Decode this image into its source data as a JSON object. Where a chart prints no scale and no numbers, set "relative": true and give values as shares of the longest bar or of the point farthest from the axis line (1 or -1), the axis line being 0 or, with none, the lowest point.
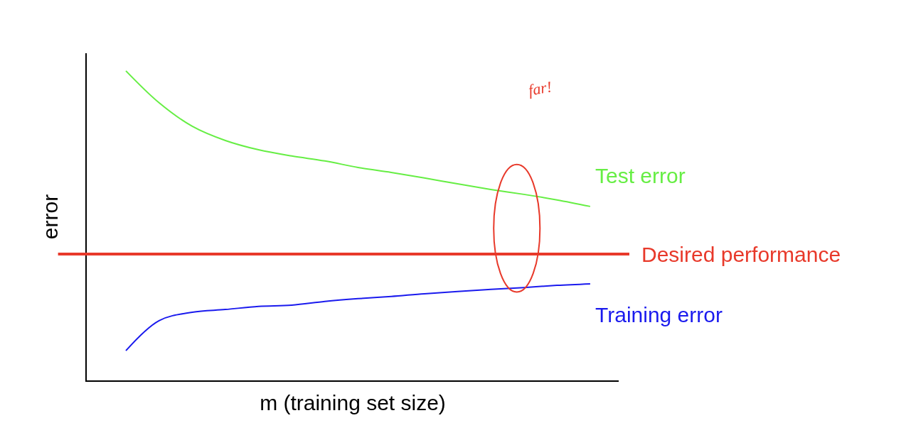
{
  "chart_data": {
    "type": "line",
    "relative": true,
    "xlabel": "m (training set size)",
    "ylabel": "error",
    "legend": false,
    "marker": "none",
    "line_style": "solid",
    "categories": [
      null,
      null,
      null,
      null,
      null,
      null,
      null,
      null,
      null,
      null,
      null,
      null,
      null,
      null,
      null
    ],
    "series": [
      {
        "name": "Test error",
        "color": "#66ee44",
        "values": [
          1,
          0.897,
          0.821,
          0.775,
          0.745,
          0.725,
          0.709,
          0.688,
          0.672,
          0.654,
          0.635,
          0.617,
          0.601,
          0.583,
          0.562
        ]
      },
      {
        "name": "Training error",
        "color": "#1a1aee",
        "values": [
          0.096,
          0.193,
          0.22,
          0.229,
          0.239,
          0.243,
          0.255,
          0.264,
          0.271,
          0.28,
          0.287,
          0.294,
          0.3,
          0.307,
          0.312
        ]
      }
    ],
    "ref_lines": [
      {
        "axis": "y",
        "value": 0.408,
        "label": "Desired performance",
        "color": "#e8392a",
        "line_style": "solid"
      }
    ],
    "annotations": [
      "far!"
    ]
  }
}
